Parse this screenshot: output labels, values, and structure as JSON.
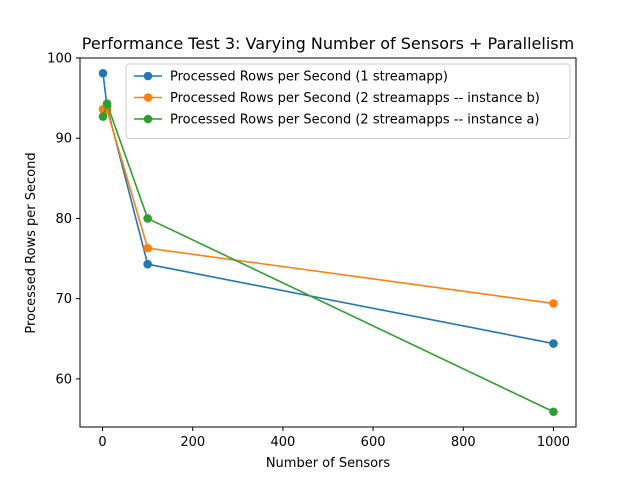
{
  "chart_data": {
    "type": "line",
    "title": "Performance Test 3: Varying Number of Sensors + Parallelism",
    "xlabel": "Number of Sensors",
    "ylabel": "Processed Rows per Second",
    "xlim": [
      -50,
      1050
    ],
    "ylim": [
      54,
      100
    ],
    "xticks": [
      0,
      200,
      400,
      600,
      800,
      1000
    ],
    "yticks": [
      60,
      70,
      80,
      90,
      100
    ],
    "legend_position": "upper-right",
    "grid": false,
    "series": [
      {
        "name": "Processed Rows per Second (1 streamapp)",
        "color": "#1f77b4",
        "x": [
          1,
          10,
          100,
          1000
        ],
        "y": [
          98.1,
          93.9,
          74.3,
          64.4
        ]
      },
      {
        "name": "Processed Rows per Second (2 streamapps -- instance b)",
        "color": "#ff7f0e",
        "x": [
          1,
          10,
          100,
          1000
        ],
        "y": [
          93.6,
          93.5,
          76.3,
          69.4
        ]
      },
      {
        "name": "Processed Rows per Second (2 streamapps -- instance a)",
        "color": "#2ca02c",
        "x": [
          1,
          10,
          100,
          1000
        ],
        "y": [
          92.7,
          94.3,
          80.0,
          55.9
        ]
      }
    ]
  }
}
